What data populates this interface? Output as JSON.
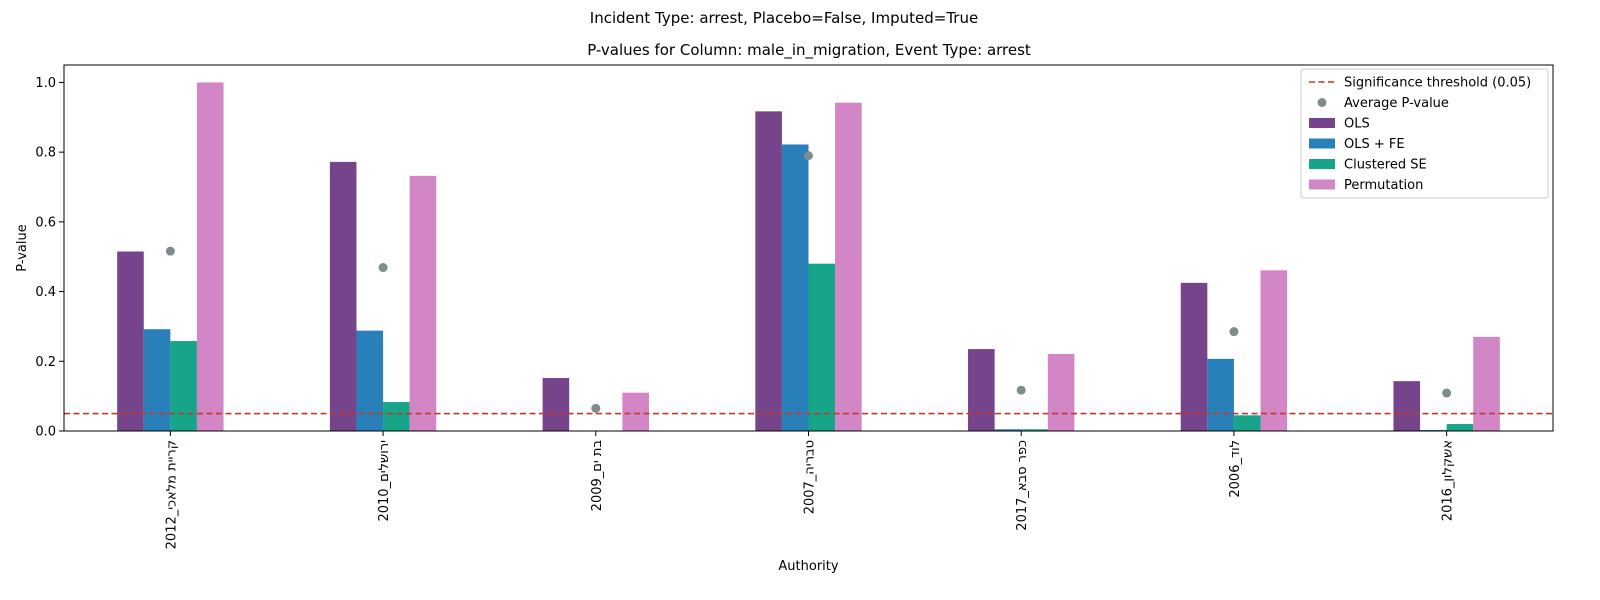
{
  "suptitle": "Incident Type: arrest, Placebo=False, Imputed=True",
  "chart_data": {
    "type": "bar",
    "title": "P-values for Column: male_in_migration, Event Type: arrest",
    "xlabel": "Authority",
    "ylabel": "P-value",
    "ylim": [
      0,
      1.05
    ],
    "yticks": [
      "0.0",
      "0.2",
      "0.4",
      "0.6",
      "0.8",
      "1.0"
    ],
    "categories": [
      "קריית מלאכי_2012",
      "ירושלים_2010",
      "בת ים_2009",
      "טבריה_2007",
      "כפר סבא_2017",
      "לוד_2006",
      "אשקלון_2016"
    ],
    "series": [
      {
        "name": "OLS",
        "color": "#76448a",
        "values": [
          0.515,
          0.772,
          0.152,
          0.917,
          0.235,
          0.425,
          0.143
        ]
      },
      {
        "name": "OLS + FE",
        "color": "#2980b9",
        "values": [
          0.292,
          0.288,
          0.0,
          0.822,
          0.005,
          0.207,
          0.003
        ]
      },
      {
        "name": "Clustered SE",
        "color": "#17a589",
        "values": [
          0.258,
          0.083,
          0.0,
          0.48,
          0.005,
          0.045,
          0.02
        ]
      },
      {
        "name": "Permutation",
        "color": "#d286c6",
        "values": [
          1.0,
          0.732,
          0.11,
          0.942,
          0.221,
          0.461,
          0.27
        ]
      }
    ],
    "average": {
      "name": "Average P-value",
      "color": "#7f8c8d",
      "values": [
        0.516,
        0.469,
        0.065,
        0.79,
        0.117,
        0.285,
        0.109
      ]
    },
    "threshold": {
      "name": "Significance threshold (0.05)",
      "value": 0.05,
      "color": "#c0392b"
    },
    "legend_position": "top-right",
    "grid": false
  }
}
